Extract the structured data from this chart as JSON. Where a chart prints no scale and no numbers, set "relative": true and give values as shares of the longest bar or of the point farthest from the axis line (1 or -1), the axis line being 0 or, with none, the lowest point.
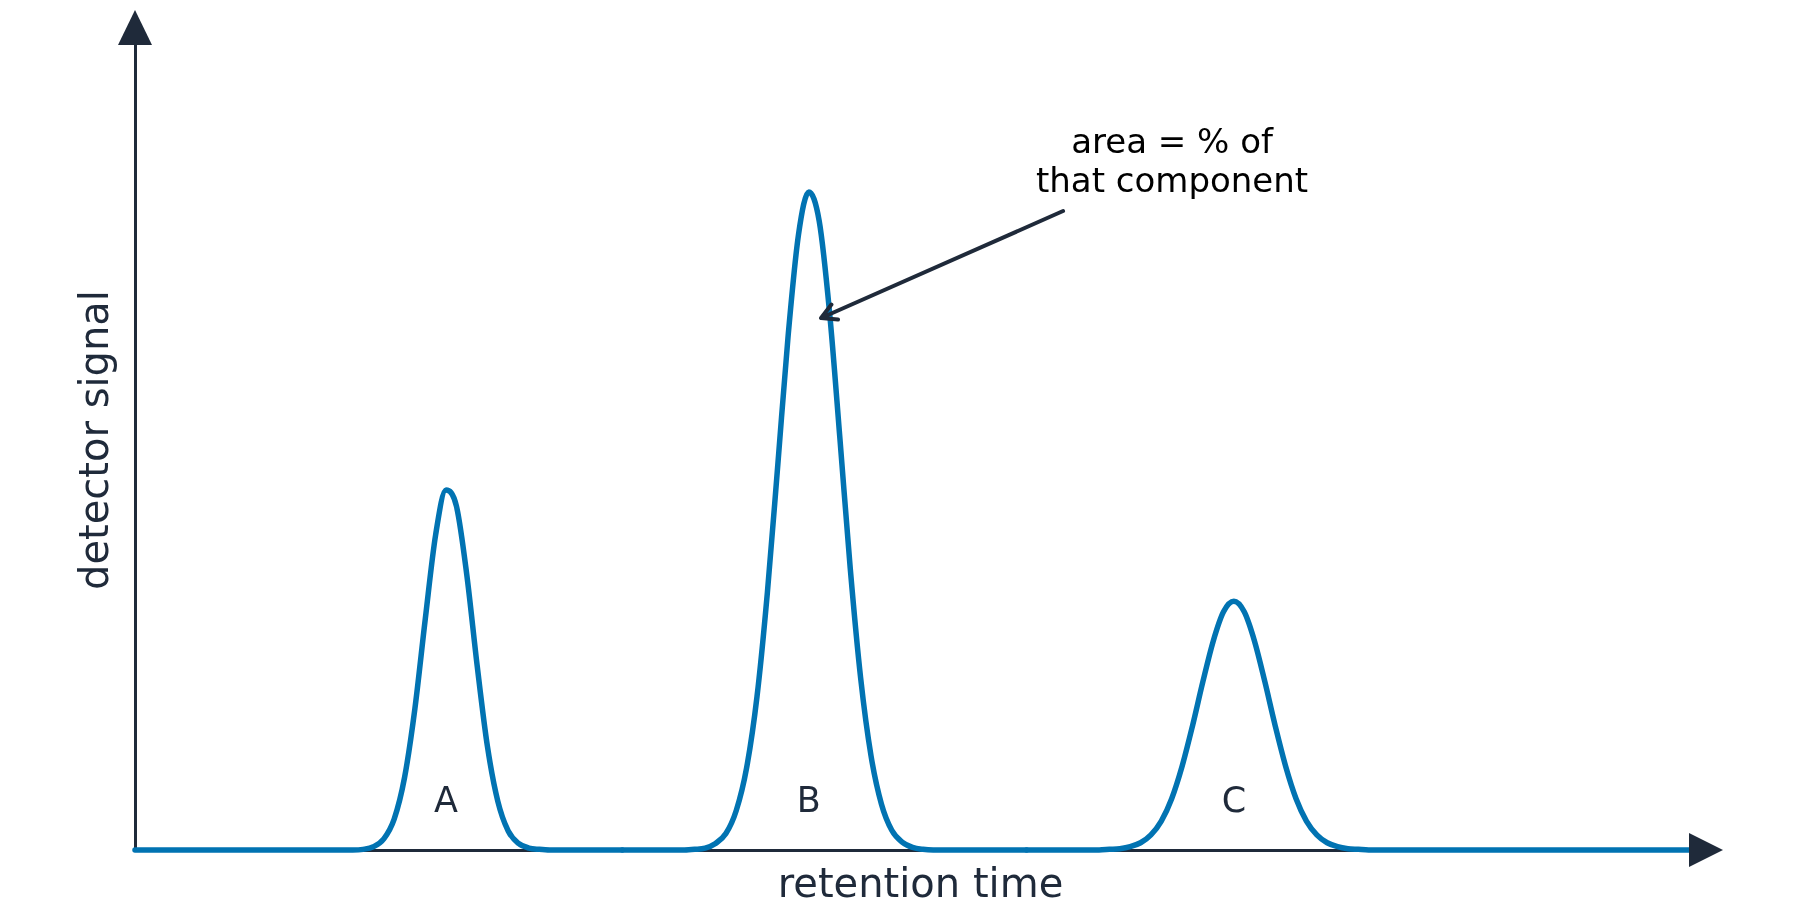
{
  "chart_data": {
    "type": "line",
    "relative": true,
    "xlabel": "retention time",
    "ylabel": "detector signal",
    "categories": [
      null,
      null,
      null,
      null,
      null,
      null,
      null,
      null,
      null,
      null,
      null,
      null,
      null,
      null,
      null,
      null,
      null,
      null,
      null,
      null,
      null,
      null,
      null,
      null,
      null,
      null,
      null,
      null,
      null,
      null,
      null,
      null,
      null,
      null,
      null,
      null,
      null,
      null,
      null,
      null,
      null,
      null,
      null,
      null,
      null,
      null,
      null,
      null,
      null,
      null,
      null,
      null,
      null,
      null,
      null,
      null,
      null,
      null,
      null,
      null,
      null,
      null,
      null,
      null,
      null,
      null,
      null,
      null,
      null,
      null,
      null,
      null,
      null,
      null,
      null,
      null,
      null,
      null,
      null,
      null,
      null,
      null,
      null,
      null,
      null,
      null,
      null,
      null,
      null,
      null,
      null,
      null,
      null,
      null,
      null,
      null,
      null,
      null,
      null,
      null,
      null,
      null,
      null,
      null,
      null,
      null,
      null,
      null,
      null,
      null,
      null,
      null,
      null,
      null,
      null,
      null,
      null,
      null,
      null,
      null,
      null,
      null,
      null,
      null,
      null,
      null,
      null,
      null,
      null,
      null,
      null,
      null,
      null,
      null,
      null,
      null,
      null,
      null,
      null,
      null,
      null,
      null,
      null,
      null,
      null,
      null,
      null,
      null,
      null,
      null,
      null
    ],
    "series": [
      {
        "name": "A",
        "color": "#0173b2",
        "values": [
          0,
          0,
          0,
          0,
          0,
          0,
          0,
          0,
          0,
          0,
          0,
          0,
          0,
          0,
          0,
          0,
          0,
          0,
          0,
          0,
          0,
          0,
          0.001,
          0.005,
          0.017,
          0.047,
          0.11,
          0.215,
          0.351,
          0.479,
          0.547,
          0.523,
          0.419,
          0.281,
          0.157,
          0.074,
          0.029,
          0.01,
          0.003,
          0.001,
          0,
          0,
          0,
          0,
          0,
          0,
          0,
          0,
          null,
          null,
          null,
          null,
          null,
          null,
          null,
          null,
          null,
          null,
          null,
          null,
          null,
          null,
          null,
          null,
          null,
          null,
          null,
          null,
          null,
          null,
          null,
          null,
          null,
          null,
          null,
          null,
          null,
          null,
          null,
          null,
          null,
          null,
          null,
          null,
          null,
          null,
          null,
          null,
          null,
          null,
          null,
          null,
          null,
          null,
          null,
          null,
          null,
          null,
          null,
          null,
          null,
          null,
          null,
          null,
          null,
          null,
          null,
          null,
          null,
          null,
          null,
          null,
          null,
          null,
          null,
          null,
          null,
          null,
          null,
          null,
          null,
          null,
          null,
          null,
          null,
          null,
          null,
          null,
          null,
          null,
          null,
          null,
          null,
          null,
          null,
          null,
          null,
          null,
          null,
          null,
          null,
          null,
          null,
          null,
          null,
          null,
          null,
          null,
          null,
          null,
          null
        ]
      },
      {
        "name": "B",
        "color": "#0173b2",
        "values": [
          null,
          null,
          null,
          null,
          null,
          null,
          null,
          null,
          null,
          null,
          null,
          null,
          null,
          null,
          null,
          null,
          null,
          null,
          null,
          null,
          null,
          null,
          null,
          null,
          null,
          null,
          null,
          null,
          null,
          null,
          null,
          null,
          null,
          null,
          null,
          null,
          null,
          null,
          null,
          null,
          null,
          null,
          null,
          null,
          null,
          null,
          null,
          0,
          0,
          0,
          0,
          0,
          0,
          0,
          0.001,
          0.003,
          0.01,
          0.025,
          0.06,
          0.125,
          0.233,
          0.391,
          0.584,
          0.781,
          0.935,
          1,
          0.956,
          0.817,
          0.625,
          0.427,
          0.261,
          0.143,
          0.07,
          0.03,
          0.012,
          0.004,
          0.001,
          0,
          0,
          0,
          0,
          0,
          0,
          0,
          0,
          0,
          0,
          null,
          null,
          null,
          null,
          null,
          null,
          null,
          null,
          null,
          null,
          null,
          null,
          null,
          null,
          null,
          null,
          null,
          null,
          null,
          null,
          null,
          null,
          null,
          null,
          null,
          null,
          null,
          null,
          null,
          null,
          null,
          null,
          null,
          null,
          null,
          null,
          null,
          null,
          null,
          null,
          null,
          null,
          null,
          null,
          null,
          null,
          null,
          null,
          null,
          null,
          null,
          null,
          null,
          null,
          null,
          null,
          null,
          null,
          null,
          null,
          null,
          null,
          null,
          null
        ]
      },
      {
        "name": "C",
        "color": "#0173b2",
        "values": [
          null,
          null,
          null,
          null,
          null,
          null,
          null,
          null,
          null,
          null,
          null,
          null,
          null,
          null,
          null,
          null,
          null,
          null,
          null,
          null,
          null,
          null,
          null,
          null,
          null,
          null,
          null,
          null,
          null,
          null,
          null,
          null,
          null,
          null,
          null,
          null,
          null,
          null,
          null,
          null,
          null,
          null,
          null,
          null,
          null,
          null,
          null,
          null,
          null,
          null,
          null,
          null,
          null,
          null,
          null,
          null,
          null,
          null,
          null,
          null,
          null,
          null,
          null,
          null,
          null,
          null,
          null,
          null,
          null,
          null,
          null,
          null,
          null,
          null,
          null,
          null,
          null,
          null,
          null,
          null,
          null,
          null,
          null,
          null,
          null,
          null,
          0,
          0,
          0,
          0,
          0,
          0,
          0,
          0,
          0.001,
          0.002,
          0.005,
          0.011,
          0.023,
          0.044,
          0.078,
          0.127,
          0.188,
          0.255,
          0.317,
          0.362,
          0.378,
          0.362,
          0.317,
          0.255,
          0.188,
          0.127,
          0.078,
          0.044,
          0.023,
          0.011,
          0.005,
          0.002,
          0.001,
          0,
          0,
          0,
          0,
          0,
          0,
          0,
          0,
          0,
          0,
          0,
          0,
          0,
          0,
          0,
          0,
          0,
          0,
          0,
          0,
          0,
          0,
          0,
          0,
          0,
          0,
          0,
          0,
          0,
          0,
          0,
          0
        ]
      }
    ],
    "annotations": [
      "area = % of\nthat component"
    ]
  }
}
